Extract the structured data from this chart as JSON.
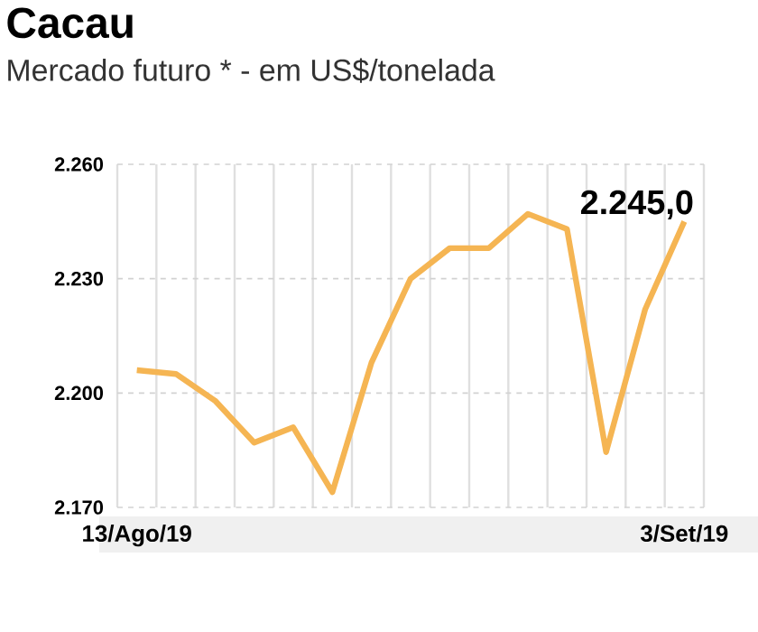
{
  "chart_data": {
    "type": "line",
    "title": "Cacau",
    "subtitle": "Mercado futuro * - em US$/tonelada",
    "categories": [
      "13/Ago/19",
      null,
      null,
      null,
      null,
      null,
      null,
      null,
      null,
      null,
      null,
      null,
      null,
      null,
      "3/Set/19"
    ],
    "series": [
      {
        "color": "#f5b553",
        "values": [
          2206,
          2205,
          2198,
          2187,
          2191,
          2174,
          2208,
          2230,
          2238,
          2238,
          2247,
          2243,
          2184.5,
          2222,
          2245.0
        ],
        "value_labels": [
          null,
          null,
          null,
          null,
          null,
          null,
          null,
          null,
          null,
          null,
          null,
          null,
          null,
          null,
          "2.245,0"
        ]
      }
    ],
    "ylim": [
      2170,
      2260
    ],
    "yticks": [
      {
        "value": 2170,
        "label": "2.170"
      },
      {
        "value": 2200,
        "label": "2.200"
      },
      {
        "value": 2230,
        "label": "2.230"
      },
      {
        "value": 2260,
        "label": "2.260"
      }
    ],
    "grid": true
  }
}
